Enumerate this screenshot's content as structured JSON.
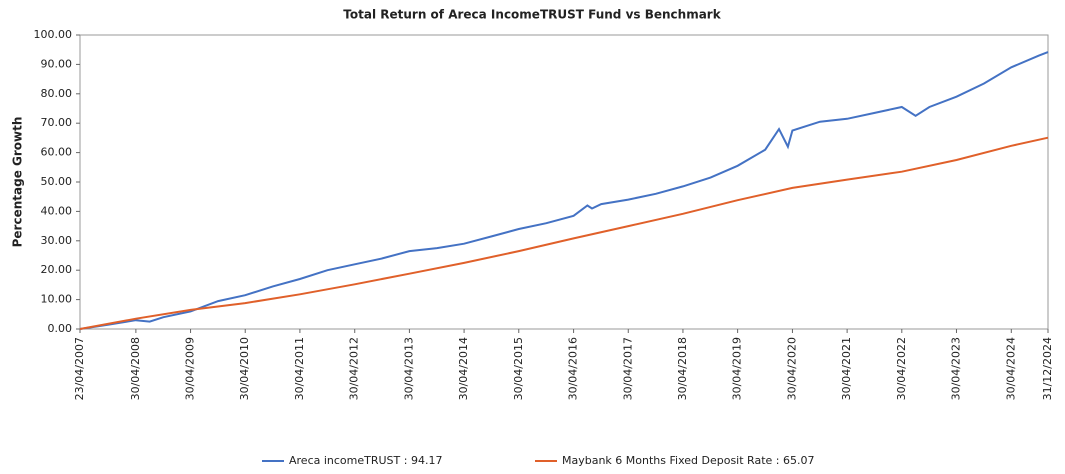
{
  "chart_data": {
    "type": "line",
    "title": "Total Return of Areca IncomeTRUST Fund vs Benchmark",
    "y_label": "Percentage Growth",
    "grid": false,
    "legend": "bottom",
    "xlim": [
      "23/04/2007",
      "31/12/2024"
    ],
    "xticks": [
      "23/04/2007",
      "30/04/2008",
      "30/04/2009",
      "30/04/2010",
      "30/04/2011",
      "30/04/2012",
      "30/04/2013",
      "30/04/2014",
      "30/04/2015",
      "30/04/2016",
      "30/04/2017",
      "30/04/2018",
      "30/04/2019",
      "30/04/2020",
      "30/04/2021",
      "30/04/2022",
      "30/04/2023",
      "30/04/2024",
      "31/12/2024"
    ],
    "ylim": [
      0,
      100
    ],
    "yticks": [
      {
        "value": 0,
        "label": "0.00"
      },
      {
        "value": 10,
        "label": "10.00"
      },
      {
        "value": 20,
        "label": "20.00"
      },
      {
        "value": 30,
        "label": "30.00"
      },
      {
        "value": 40,
        "label": "40.00"
      },
      {
        "value": 50,
        "label": "50.00"
      },
      {
        "value": 60,
        "label": "60.00"
      },
      {
        "value": 70,
        "label": "70.00"
      },
      {
        "value": 80,
        "label": "80.00"
      },
      {
        "value": 90,
        "label": "90.00"
      },
      {
        "value": 100,
        "label": "100.00"
      }
    ],
    "series": [
      {
        "name": "Areca incomeTRUST : 94.17",
        "color": "#4472c4",
        "x": [
          "23/04/2007",
          "31/10/2007",
          "30/04/2008",
          "31/07/2008",
          "31/10/2008",
          "30/04/2009",
          "31/10/2009",
          "30/04/2010",
          "31/10/2010",
          "30/04/2011",
          "31/10/2011",
          "30/04/2012",
          "31/10/2012",
          "30/04/2013",
          "31/10/2013",
          "30/04/2014",
          "31/10/2014",
          "30/04/2015",
          "31/10/2015",
          "30/04/2016",
          "31/07/2016",
          "31/08/2016",
          "31/10/2016",
          "30/04/2017",
          "31/10/2017",
          "30/04/2018",
          "31/10/2018",
          "30/04/2019",
          "31/10/2019",
          "31/01/2020",
          "31/03/2020",
          "30/04/2020",
          "31/10/2020",
          "30/04/2021",
          "31/10/2021",
          "30/04/2022",
          "31/07/2022",
          "31/10/2022",
          "30/04/2023",
          "31/10/2023",
          "30/04/2024",
          "31/10/2024",
          "31/12/2024"
        ],
        "values": [
          0,
          1.5,
          3,
          2.5,
          4,
          6,
          9.5,
          11.5,
          14.5,
          17,
          20,
          22,
          24,
          26.5,
          27.5,
          29,
          31.5,
          34,
          36,
          38.5,
          42,
          41,
          42.5,
          44,
          46,
          48.5,
          51.5,
          55.5,
          61,
          68,
          62,
          67.5,
          70.5,
          71.5,
          73.5,
          75.5,
          72.5,
          75.5,
          79,
          83.5,
          89,
          93,
          94.17
        ]
      },
      {
        "name": "Maybank 6 Months Fixed Deposit Rate : 65.07",
        "color": "#e0602a",
        "x": [
          "23/04/2007",
          "30/04/2008",
          "30/04/2009",
          "30/04/2010",
          "30/04/2011",
          "30/04/2012",
          "30/04/2013",
          "30/04/2014",
          "30/04/2015",
          "30/04/2016",
          "30/04/2017",
          "30/04/2018",
          "30/04/2019",
          "30/04/2020",
          "30/04/2021",
          "30/04/2022",
          "30/04/2023",
          "30/04/2024",
          "31/12/2024"
        ],
        "values": [
          0,
          3.5,
          6.5,
          8.8,
          11.8,
          15.2,
          18.8,
          22.5,
          26.5,
          30.8,
          35,
          39.2,
          43.8,
          48,
          50.8,
          53.5,
          57.5,
          62.3,
          65.07
        ]
      }
    ]
  }
}
